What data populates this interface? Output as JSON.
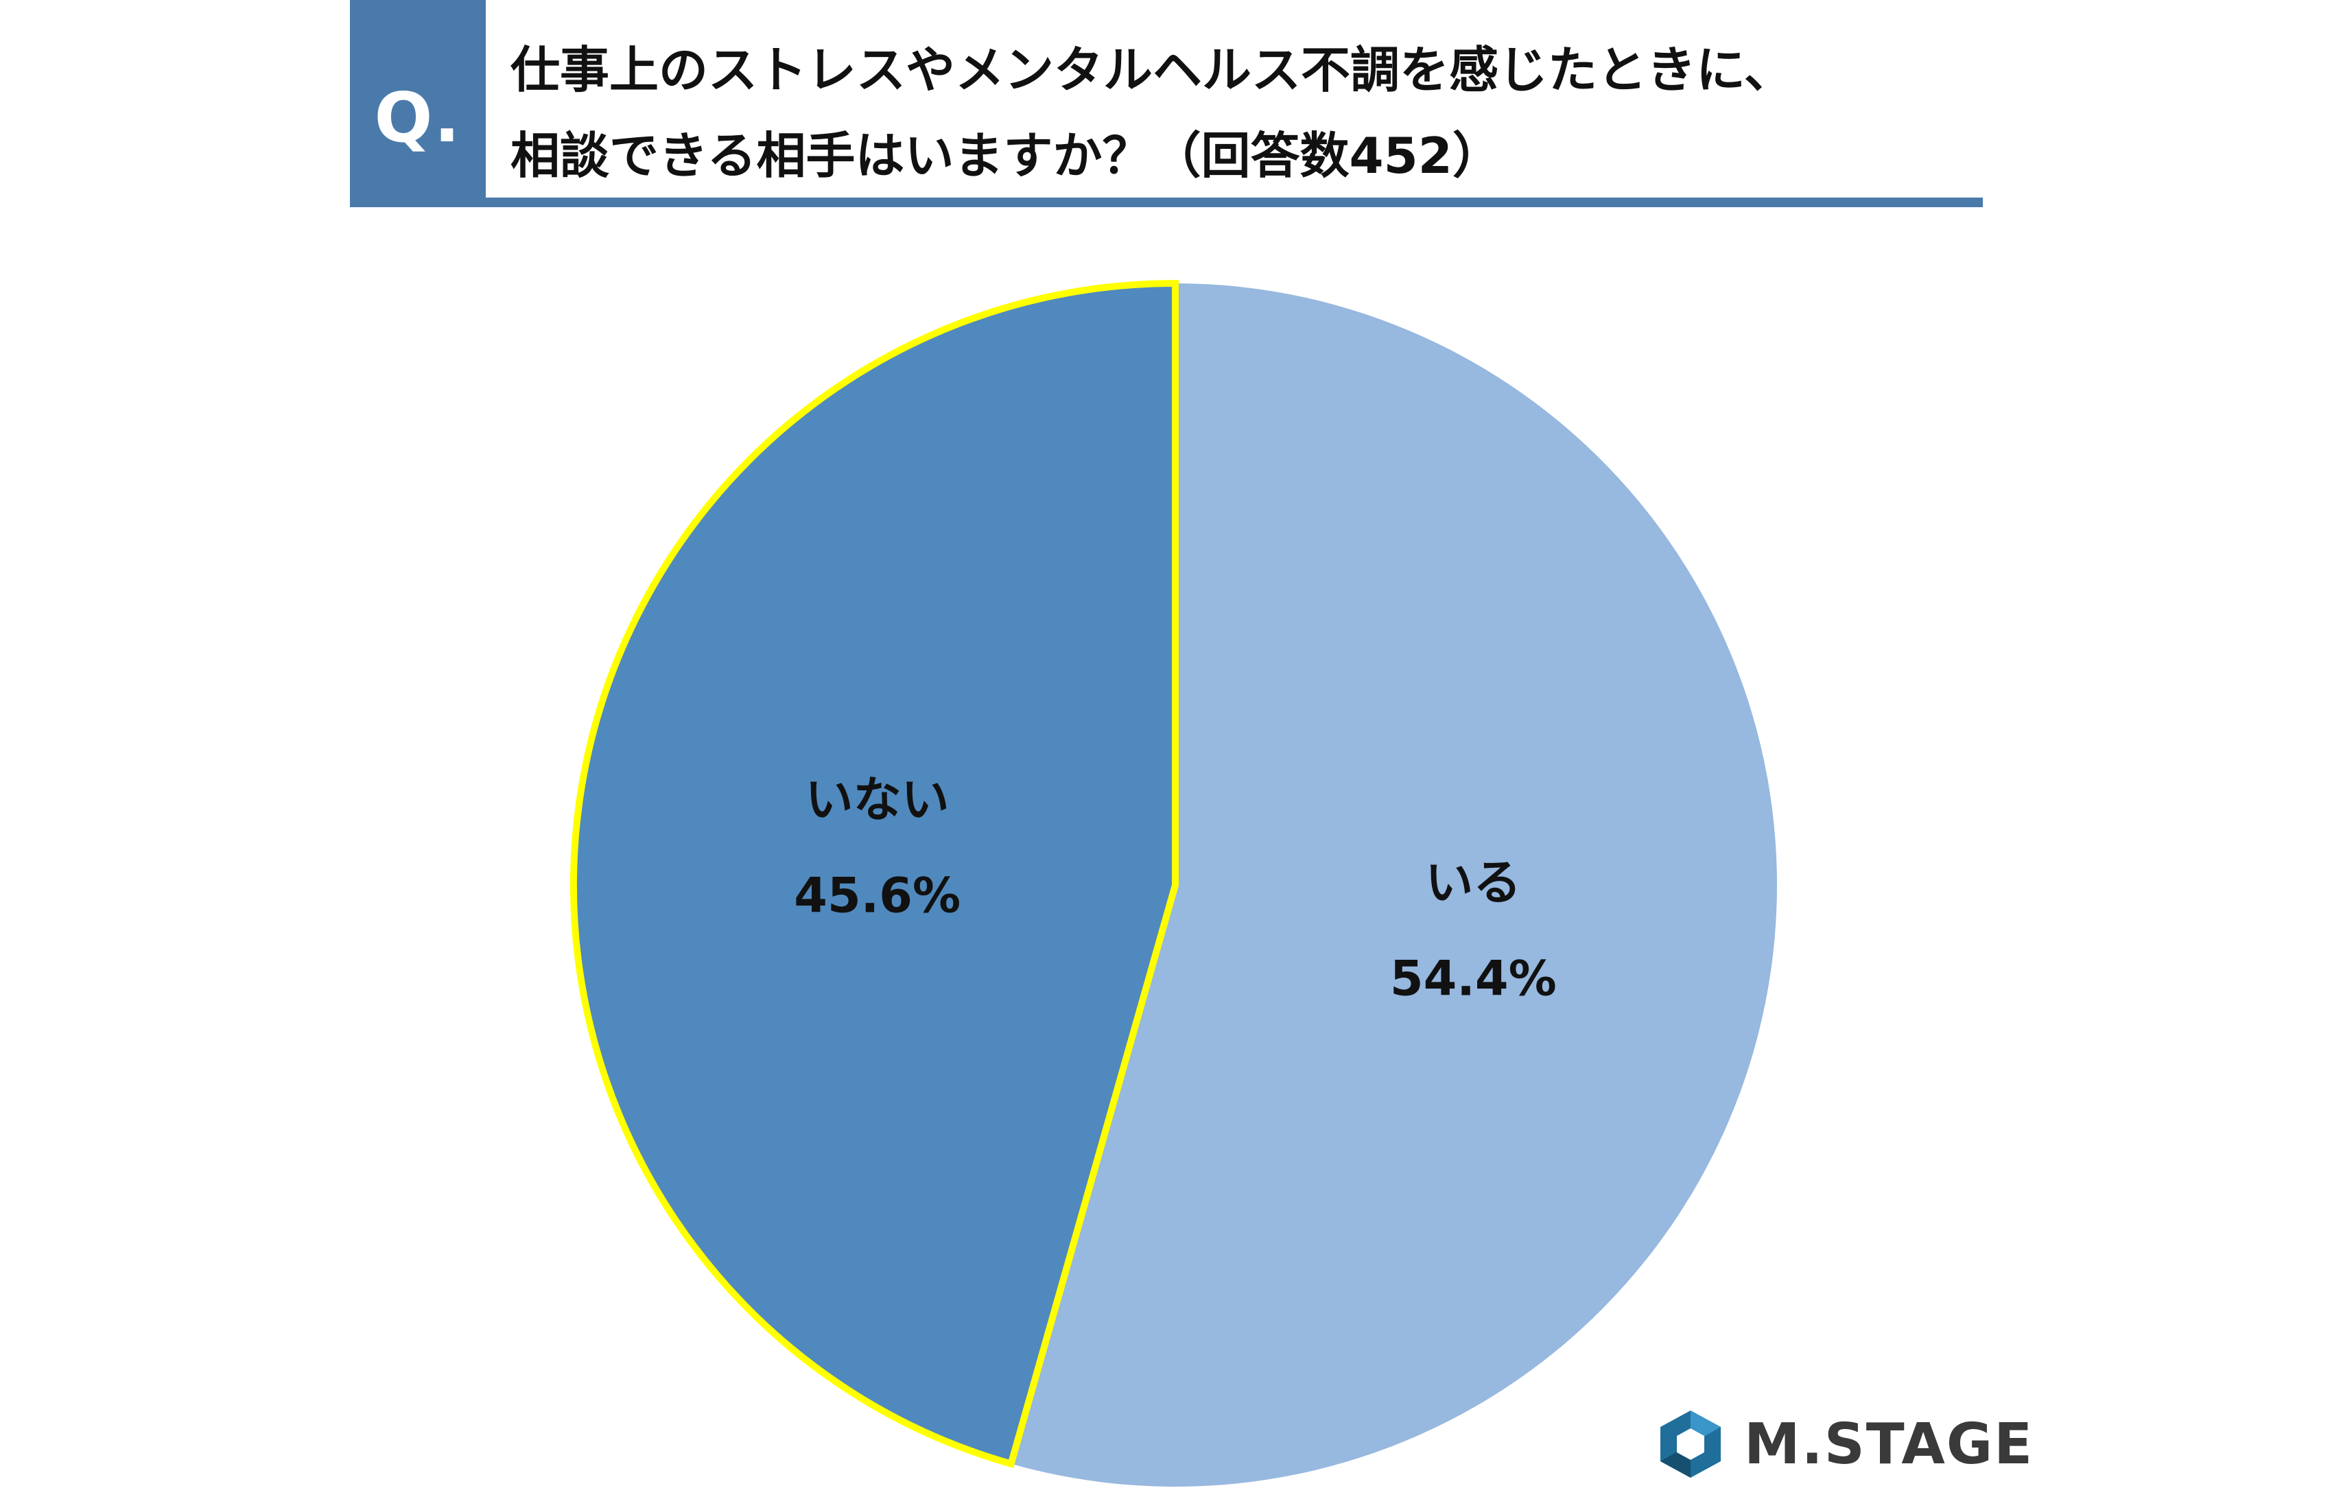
{
  "header": {
    "badge": "Q.",
    "title_line1": "仕事上のストレスやメンタルヘルス不調を感じたときに、",
    "title_line2": "相談できる相手はいますか？（回答数452）"
  },
  "colors": {
    "accent": "#4a7aaa",
    "slice_yes": "#97b8df",
    "slice_no": "#5089bd",
    "highlight_stroke": "#ffff00"
  },
  "chart_data": {
    "type": "pie",
    "title": "仕事上のストレスやメンタルヘルス不調を感じたときに、相談できる相手はいますか？（回答数452）",
    "slices": [
      {
        "label": "いる",
        "value": 54.4,
        "display": "54.4%",
        "color": "#97b8df",
        "highlighted": false
      },
      {
        "label": "いない",
        "value": 45.6,
        "display": "45.6%",
        "color": "#5089bd",
        "highlighted": true
      }
    ],
    "start": "12 o'clock",
    "direction": "clockwise",
    "legend": "none"
  },
  "branding": {
    "logo_text": "M.STAGE",
    "logo_icon": "m-stage-hexagon-icon"
  }
}
